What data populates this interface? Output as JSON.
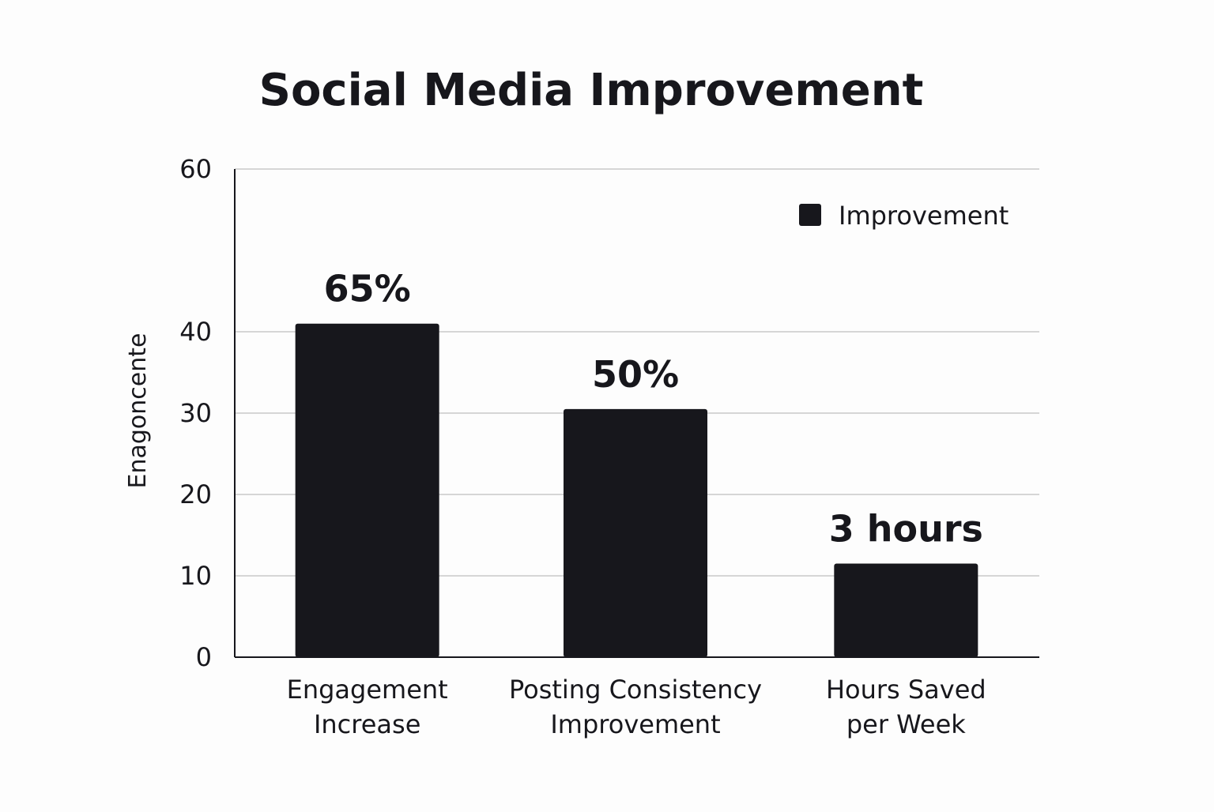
{
  "chart_data": {
    "type": "bar",
    "title": "Social Media Improvement",
    "xlabel": "",
    "ylabel": "Enagoncente",
    "ylim": [
      0,
      60
    ],
    "yticks": [
      0,
      10,
      20,
      30,
      40,
      60
    ],
    "grid": true,
    "legend_position": "top-right",
    "categories": [
      [
        "Engagement",
        "Increase"
      ],
      [
        "Posting Consistency",
        "Improvement"
      ],
      [
        "Hours Saved",
        "per Week"
      ]
    ],
    "series": [
      {
        "name": "Improvement",
        "values": [
          41,
          30.5,
          11.5
        ],
        "labels": [
          "65%",
          "50%",
          "3 hours"
        ],
        "color": "#17171c"
      }
    ]
  }
}
